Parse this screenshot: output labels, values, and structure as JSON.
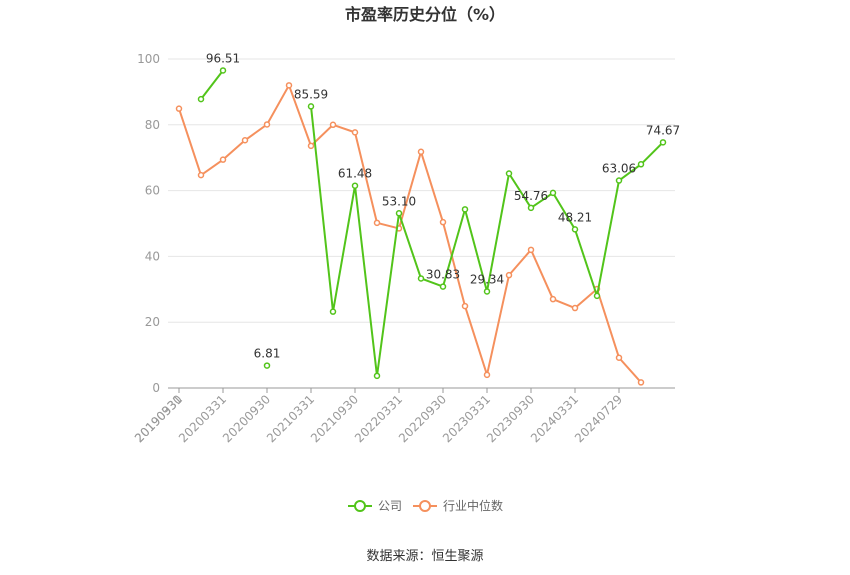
{
  "chart_data": {
    "type": "line",
    "title": "市盈率历史分位（%）",
    "ylim": [
      0,
      100
    ],
    "y_ticks": [
      0,
      20,
      40,
      60,
      80,
      100
    ],
    "x_tick_labels": [
      "20190331",
      "20190930",
      "20200331",
      "20200930",
      "20210331",
      "20210930",
      "20220331",
      "20220930",
      "20230331",
      "20230930",
      "20240331",
      "20240729"
    ],
    "grid": true,
    "legend_position": "bottom",
    "source": "数据来源：恒生聚源",
    "series": [
      {
        "name": "公司",
        "color": "#52c41a",
        "values": [
          null,
          87.8,
          96.51,
          null,
          6.81,
          null,
          85.59,
          23.2,
          61.48,
          3.7,
          53.1,
          33.3,
          30.83,
          54.3,
          29.34,
          65.2,
          54.76,
          59.3,
          48.21,
          28.0,
          63.06,
          68.0,
          74.67
        ]
      },
      {
        "name": "行业中位数",
        "color": "#f5905d",
        "values": [
          84.9,
          64.7,
          69.4,
          75.3,
          80.1,
          92.0,
          73.6,
          80.0,
          77.7,
          50.2,
          48.5,
          71.8,
          50.4,
          24.9,
          4.0,
          34.3,
          42.0,
          27.0,
          24.3,
          30.1,
          9.2,
          1.7,
          null
        ]
      }
    ],
    "data_labels": [
      {
        "series": 0,
        "index": 2,
        "text": "96.51"
      },
      {
        "series": 0,
        "index": 4,
        "text": "6.81"
      },
      {
        "series": 0,
        "index": 6,
        "text": "85.59"
      },
      {
        "series": 0,
        "index": 8,
        "text": "61.48"
      },
      {
        "series": 0,
        "index": 10,
        "text": "53.10"
      },
      {
        "series": 0,
        "index": 12,
        "text": "30.83"
      },
      {
        "series": 0,
        "index": 14,
        "text": "29.34"
      },
      {
        "series": 0,
        "index": 16,
        "text": "54.76"
      },
      {
        "series": 0,
        "index": 18,
        "text": "48.21"
      },
      {
        "series": 0,
        "index": 20,
        "text": "63.06"
      },
      {
        "series": 0,
        "index": 22,
        "text": "74.67"
      }
    ]
  }
}
